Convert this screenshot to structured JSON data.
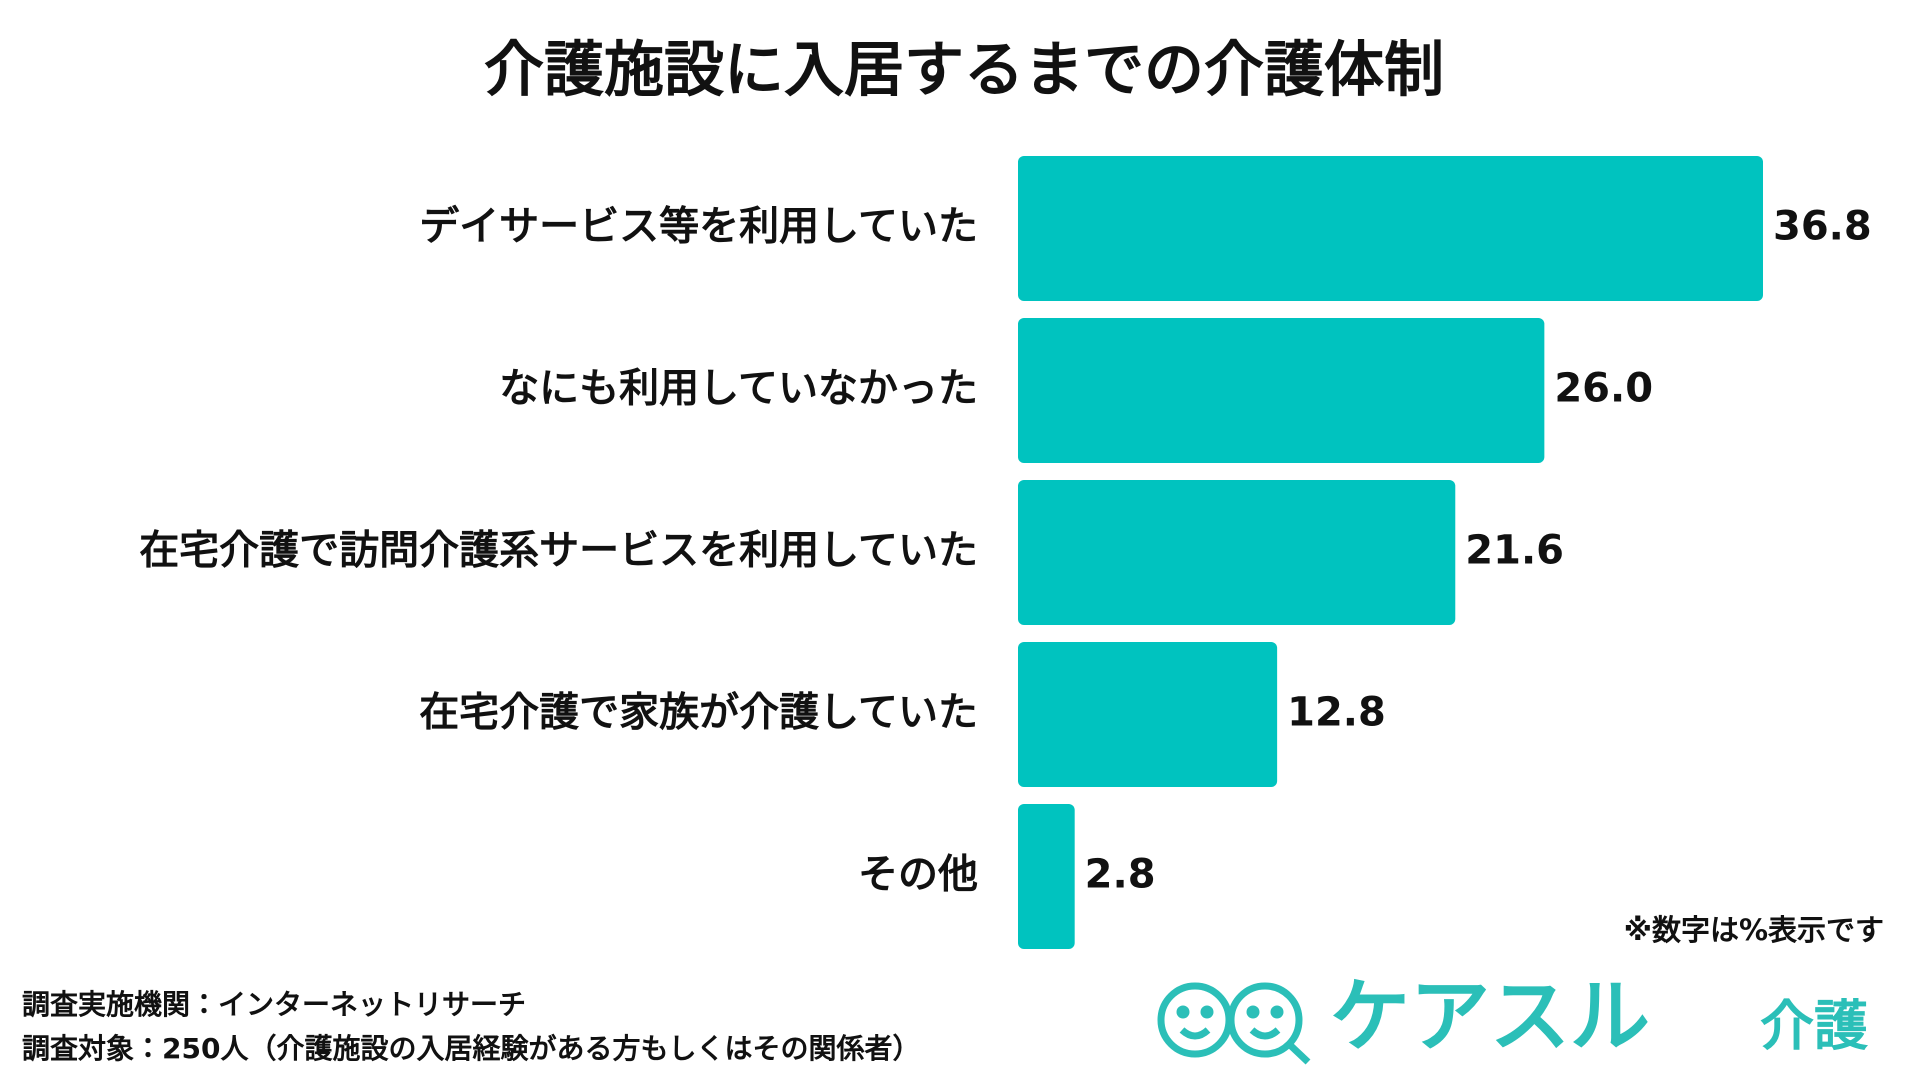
{
  "chart_data": {
    "type": "bar",
    "title": "介護施設に入居するまでの介護体制",
    "categories": [
      "デイサービス等を利用していた",
      "なにも利用していなかった",
      "在宅介護で訪問介護系サービスを利用していた",
      "在宅介護で家族が介護していた",
      "その他"
    ],
    "values": [
      36.8,
      26.0,
      21.6,
      12.8,
      2.8
    ],
    "value_labels": [
      "36.8",
      "26.0",
      "21.6",
      "12.8",
      "2.8"
    ],
    "color": "#00c3bf",
    "note": "※数字は%表示です"
  },
  "footer": {
    "source": [
      "調査実施機関：インターネットリサーチ",
      "調査対象：250人（介護施設の入居経験がある方もしくはその関係者）"
    ]
  },
  "logo": {
    "brand": "ケアスル",
    "sub": "介護"
  }
}
